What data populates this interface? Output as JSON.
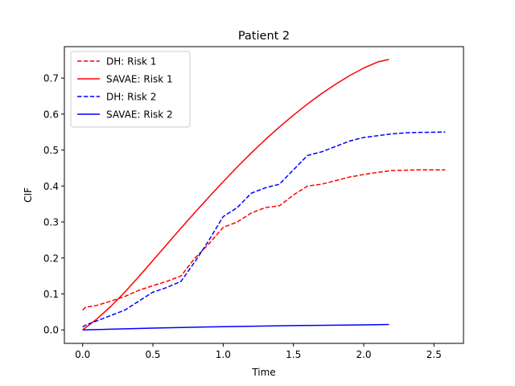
{
  "chart_data": {
    "type": "line",
    "title": "Patient 2",
    "xlabel": "Time",
    "ylabel": "CIF",
    "xlim": [
      -0.13,
      2.71
    ],
    "ylim": [
      -0.0375,
      0.7875
    ],
    "xticks": [
      0.0,
      0.5,
      1.0,
      1.5,
      2.0,
      2.5
    ],
    "xtick_labels": [
      "0.0",
      "0.5",
      "1.0",
      "1.5",
      "2.0",
      "2.5"
    ],
    "yticks": [
      0.0,
      0.1,
      0.2,
      0.3,
      0.4,
      0.5,
      0.6,
      0.7
    ],
    "ytick_labels": [
      "0.0",
      "0.1",
      "0.2",
      "0.3",
      "0.4",
      "0.5",
      "0.6",
      "0.7"
    ],
    "grid": false,
    "legend_position": "top-left",
    "series": [
      {
        "name": "DH: Risk 1",
        "color": "#ff0000",
        "dash": "dashed",
        "x": [
          0.0,
          0.02,
          0.1,
          0.2,
          0.3,
          0.4,
          0.5,
          0.6,
          0.7,
          0.8,
          0.9,
          1.0,
          1.1,
          1.2,
          1.3,
          1.4,
          1.5,
          1.6,
          1.7,
          1.8,
          1.9,
          2.0,
          2.1,
          2.2,
          2.3,
          2.4,
          2.58
        ],
        "y": [
          0.055,
          0.063,
          0.068,
          0.08,
          0.093,
          0.11,
          0.123,
          0.135,
          0.15,
          0.2,
          0.24,
          0.285,
          0.3,
          0.325,
          0.34,
          0.345,
          0.375,
          0.4,
          0.405,
          0.415,
          0.425,
          0.432,
          0.438,
          0.443,
          0.444,
          0.445,
          0.445
        ]
      },
      {
        "name": "SAVAE: Risk 1",
        "color": "#ff0000",
        "dash": "solid",
        "x": [
          0.0,
          0.1,
          0.2,
          0.3,
          0.4,
          0.5,
          0.6,
          0.7,
          0.8,
          0.9,
          1.0,
          1.1,
          1.2,
          1.3,
          1.4,
          1.5,
          1.6,
          1.7,
          1.8,
          1.9,
          2.0,
          2.1,
          2.18
        ],
        "y": [
          0.0,
          0.03,
          0.065,
          0.105,
          0.148,
          0.193,
          0.238,
          0.283,
          0.327,
          0.37,
          0.412,
          0.453,
          0.492,
          0.529,
          0.564,
          0.597,
          0.628,
          0.657,
          0.683,
          0.707,
          0.728,
          0.745,
          0.752
        ]
      },
      {
        "name": "DH: Risk 2",
        "color": "#0000ff",
        "dash": "dashed",
        "x": [
          0.0,
          0.02,
          0.1,
          0.2,
          0.3,
          0.4,
          0.5,
          0.6,
          0.7,
          0.8,
          0.9,
          1.0,
          1.1,
          1.2,
          1.3,
          1.4,
          1.5,
          1.6,
          1.7,
          1.8,
          1.9,
          2.0,
          2.1,
          2.2,
          2.3,
          2.4,
          2.58
        ],
        "y": [
          0.008,
          0.013,
          0.025,
          0.04,
          0.055,
          0.08,
          0.105,
          0.118,
          0.135,
          0.19,
          0.25,
          0.315,
          0.34,
          0.38,
          0.395,
          0.405,
          0.445,
          0.485,
          0.495,
          0.51,
          0.525,
          0.535,
          0.54,
          0.545,
          0.548,
          0.549,
          0.55
        ]
      },
      {
        "name": "SAVAE: Risk 2",
        "color": "#0000ff",
        "dash": "solid",
        "x": [
          0.0,
          0.5,
          1.0,
          1.5,
          2.0,
          2.18
        ],
        "y": [
          0.0,
          0.005,
          0.009,
          0.012,
          0.014,
          0.015
        ]
      }
    ]
  }
}
